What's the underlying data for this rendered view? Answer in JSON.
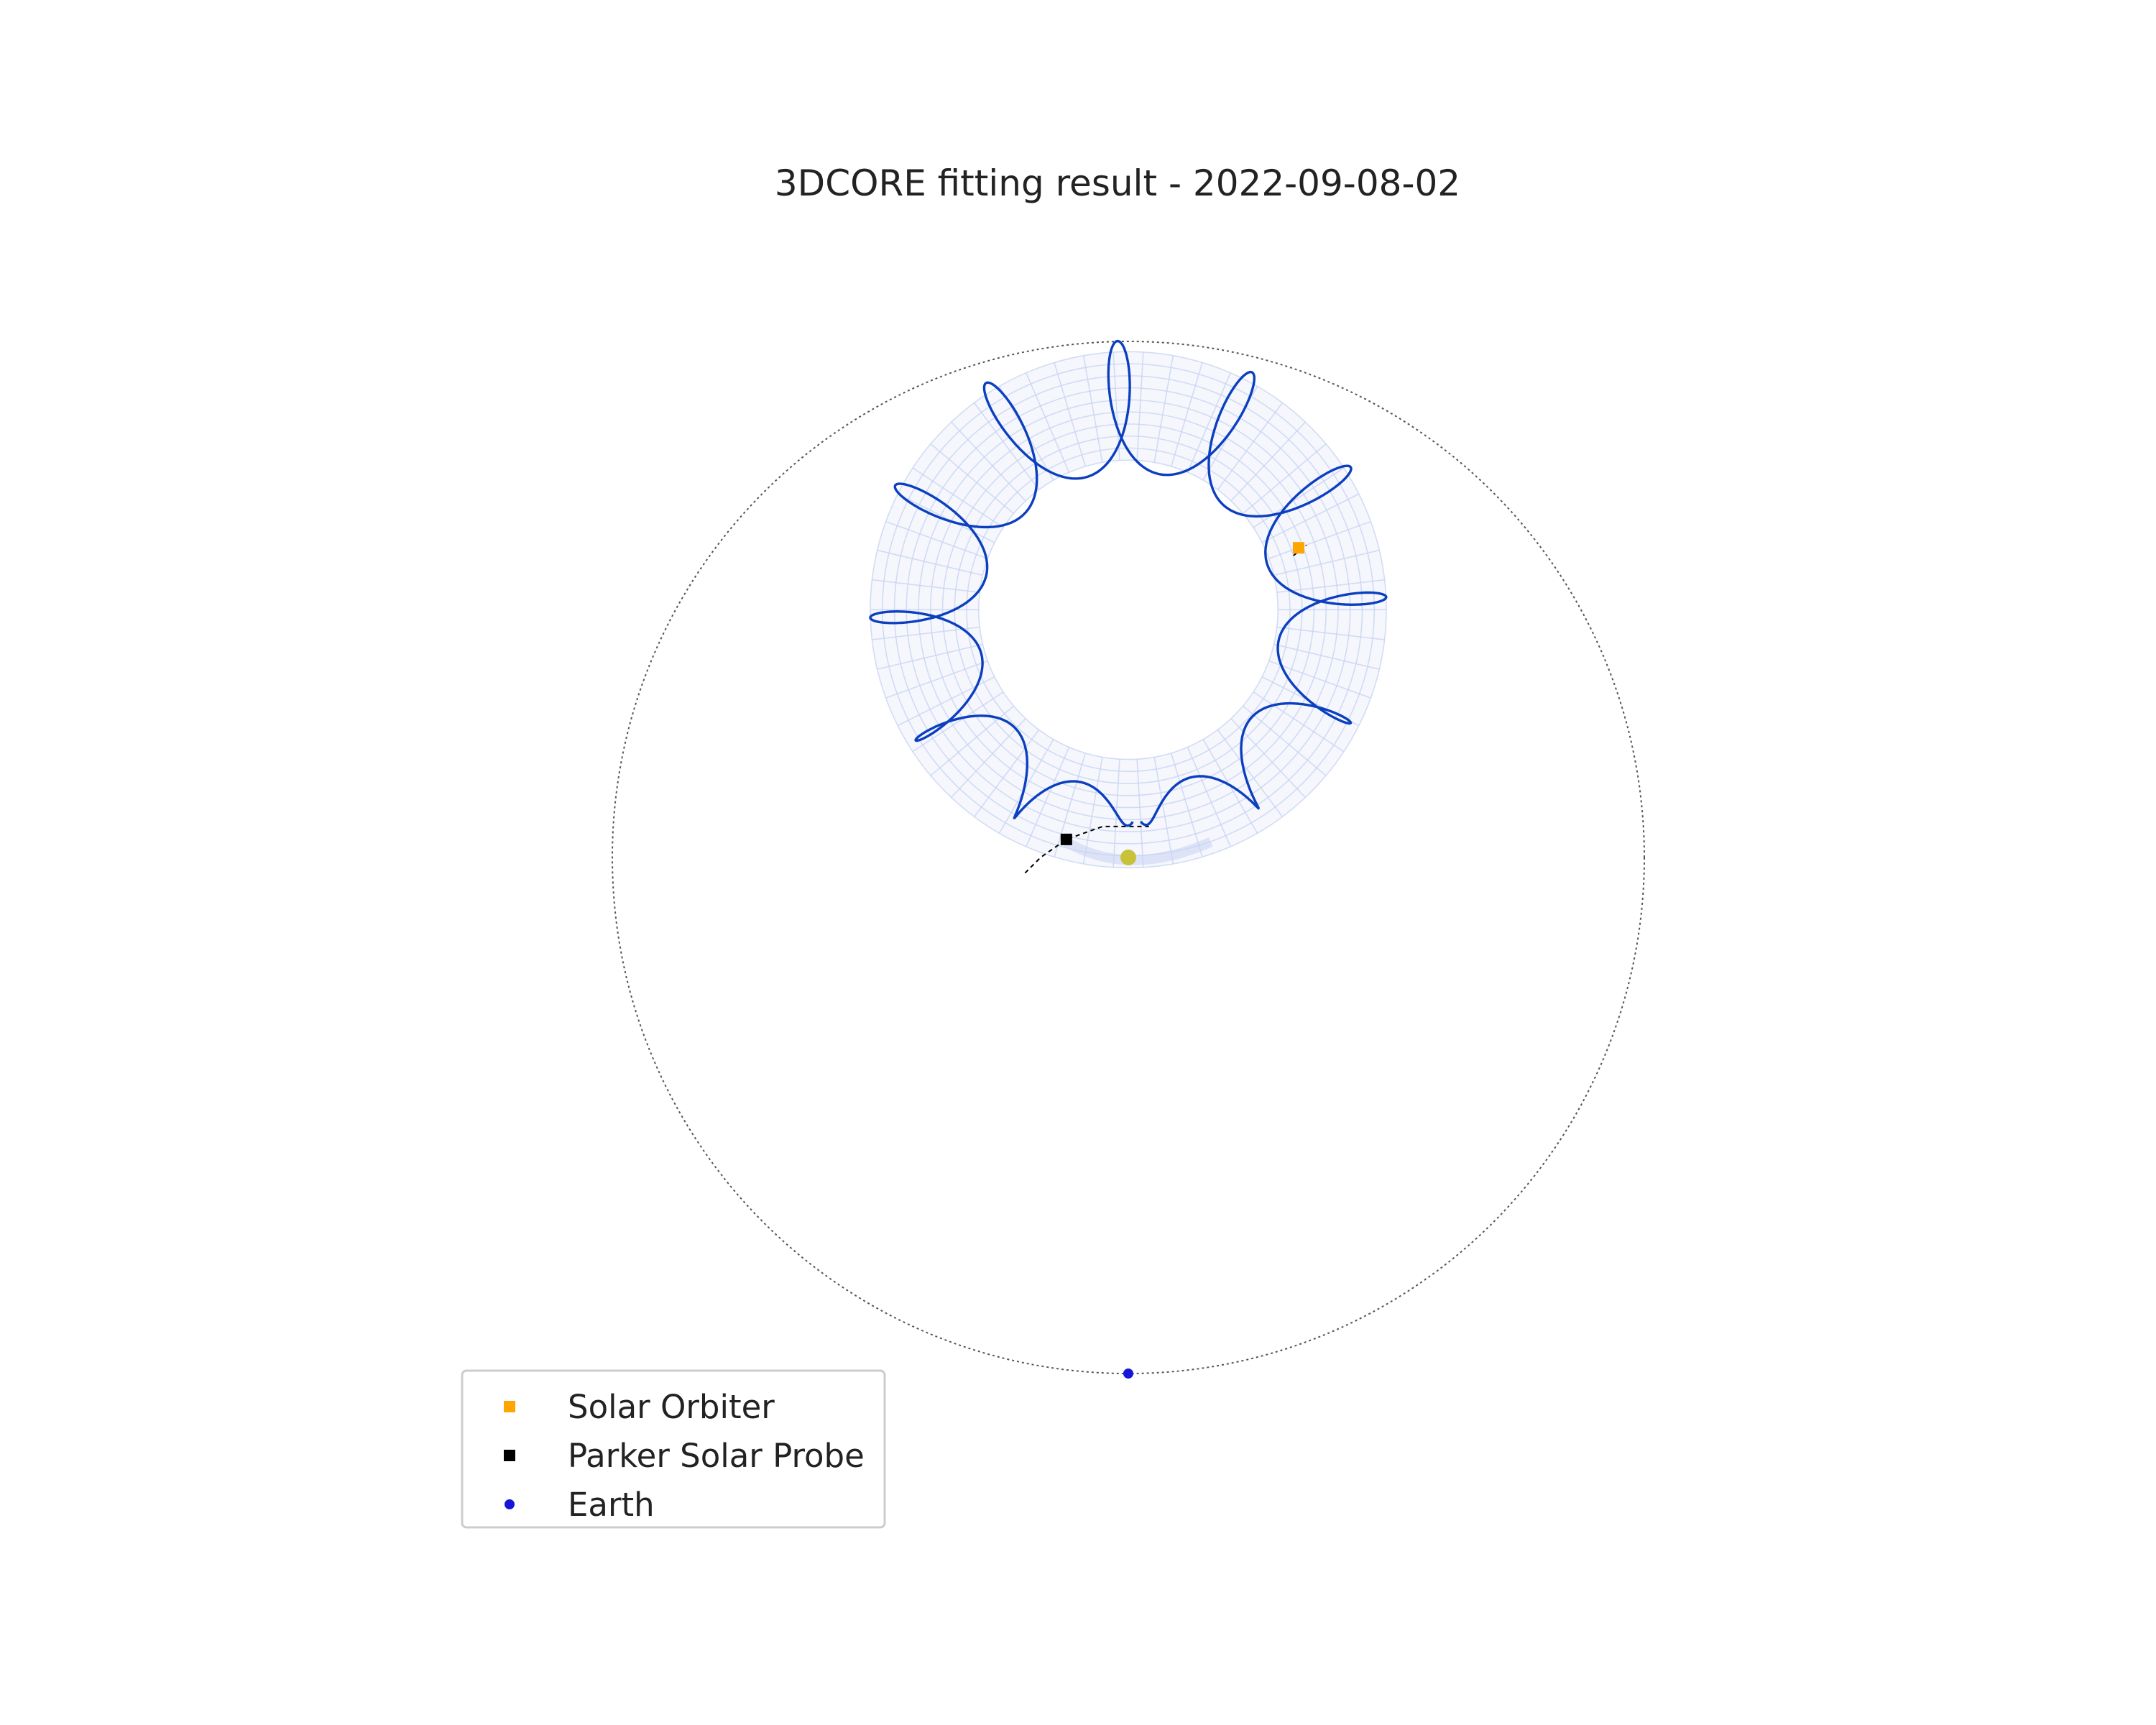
{
  "chart_data": {
    "type": "scatter",
    "title": "3DCORE fitting result - 2022-09-08-02",
    "xlabel": "",
    "ylabel": "",
    "units": "AU",
    "grid": false,
    "axes_visible": false,
    "legend_position": "lower-left",
    "earth_orbit_radius": 1.0,
    "sun": {
      "x": 0.0,
      "y": 0.0,
      "color": "#c8c23a"
    },
    "spacecraft": [
      {
        "key": "solo",
        "name": "Solar Orbiter",
        "x": 0.33,
        "y": 0.6,
        "marker": "square",
        "color": "#ffa500",
        "trajectory": [
          [
            0.32,
            0.585
          ],
          [
            0.345,
            0.605
          ]
        ]
      },
      {
        "key": "psp",
        "name": "Parker Solar Probe",
        "x": -0.12,
        "y": 0.035,
        "marker": "square",
        "color": "#000000",
        "trajectory": [
          [
            -0.2,
            -0.03
          ],
          [
            -0.17,
            0.0
          ],
          [
            -0.12,
            0.035
          ],
          [
            -0.05,
            0.06
          ],
          [
            0.04,
            0.06
          ]
        ]
      },
      {
        "key": "earth",
        "name": "Earth",
        "x": 0.0,
        "y": -1.0,
        "marker": "circle",
        "color": "#1616d8",
        "trajectory": []
      }
    ],
    "flux_rope": {
      "model": "3DCORE",
      "axis_apex": [
        0.0,
        0.79
      ],
      "axis_center": [
        0.0,
        0.48
      ],
      "axis_radius": 0.37,
      "inner_radius": 0.29,
      "outer_radius": 0.5,
      "field_line_color": "#0b3fc0",
      "mesh_color": "#c9d4f2",
      "field_line_turns": 12
    }
  }
}
